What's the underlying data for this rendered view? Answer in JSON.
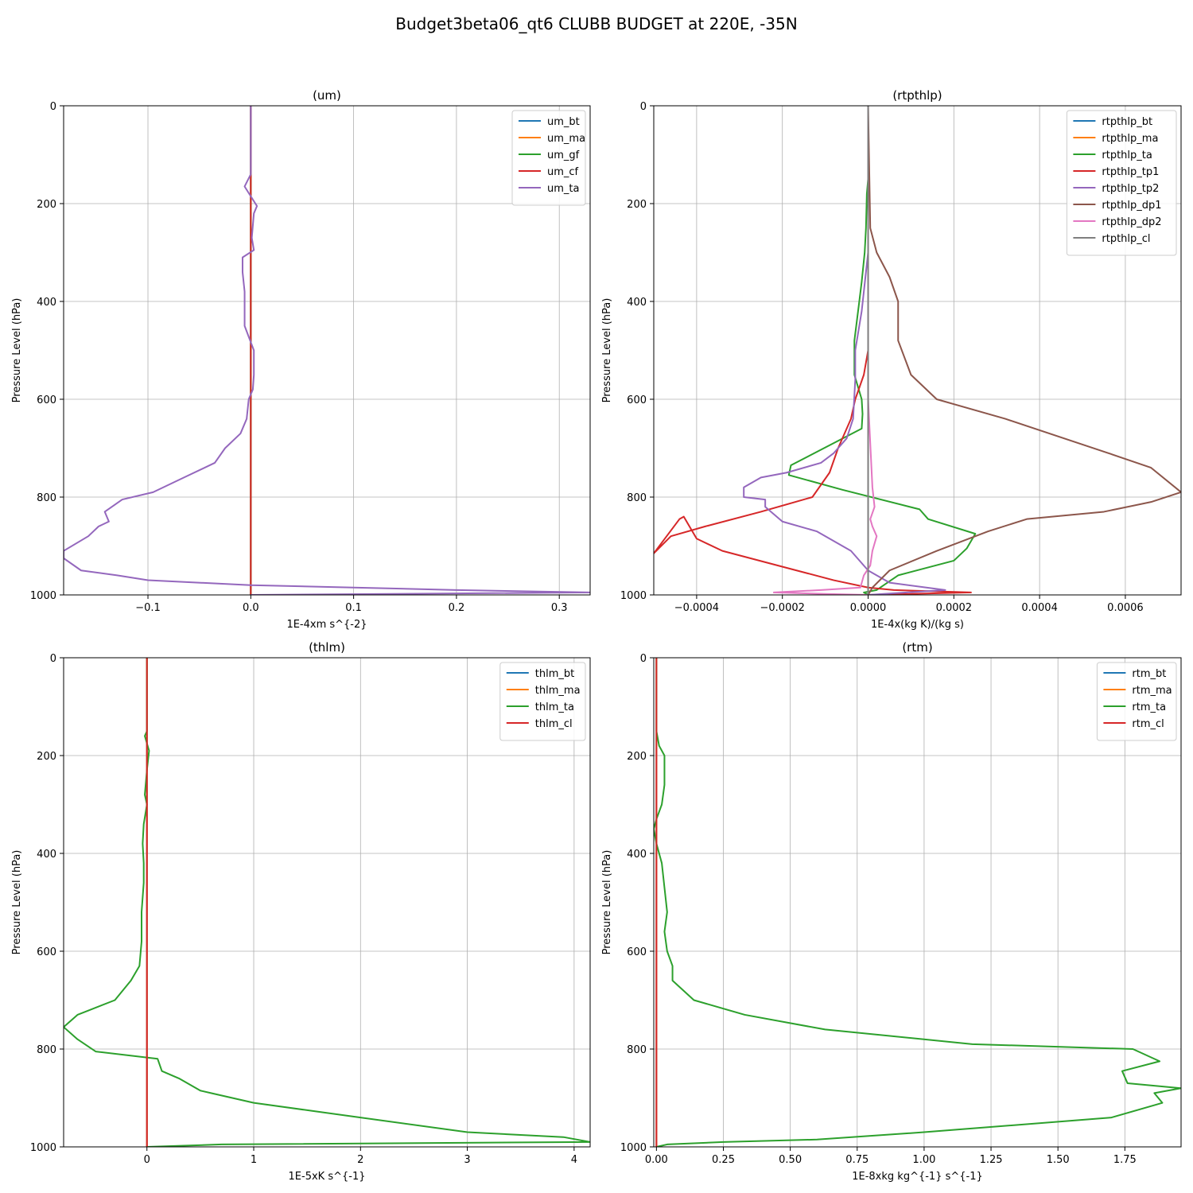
{
  "suptitle": "Budget3beta06_qt6 CLUBB BUDGET at 220E, -35N",
  "chart_data": [
    {
      "type": "line",
      "title": "(um)",
      "xlabel": "1E-4xm s^{-2}",
      "ylabel": "Pressure Level (hPa)",
      "xlim": [
        -0.182,
        0.33
      ],
      "ylim": [
        1000,
        0
      ],
      "xticks": [
        -0.1,
        0.0,
        0.1,
        0.2,
        0.3
      ],
      "xtick_labels": [
        "−0.1",
        "0.0",
        "0.1",
        "0.2",
        "0.3"
      ],
      "yticks": [
        0,
        200,
        400,
        600,
        800,
        1000
      ],
      "grid": true,
      "legend_position": "top-right",
      "series": [
        {
          "name": "um_bt",
          "color": "#1f77b4",
          "x": [
            0,
            0,
            0,
            0,
            0,
            0,
            0,
            0,
            0,
            0,
            0,
            0
          ],
          "y": [
            0,
            150,
            300,
            450,
            600,
            700,
            800,
            900,
            950,
            980,
            995,
            1000
          ]
        },
        {
          "name": "um_ma",
          "color": "#ff7f0e",
          "x": [
            0,
            0,
            0,
            0,
            0,
            0,
            0,
            0,
            0,
            0,
            0,
            0
          ],
          "y": [
            0,
            150,
            300,
            450,
            600,
            700,
            800,
            900,
            950,
            980,
            995,
            1000
          ]
        },
        {
          "name": "um_gf",
          "color": "#2ca02c",
          "x": [
            0,
            0,
            0,
            0,
            0,
            0,
            0,
            0,
            0,
            0,
            0,
            0
          ],
          "y": [
            0,
            150,
            300,
            450,
            600,
            700,
            800,
            900,
            950,
            980,
            995,
            1000
          ]
        },
        {
          "name": "um_cf",
          "color": "#d62728",
          "x": [
            0,
            0,
            0,
            0,
            0,
            0,
            0,
            0,
            0,
            0,
            0,
            0
          ],
          "y": [
            0,
            150,
            300,
            450,
            600,
            700,
            800,
            900,
            950,
            980,
            995,
            1000
          ]
        },
        {
          "name": "um_ta",
          "color": "#9467bd",
          "x": [
            0,
            0,
            0,
            -0.006,
            0.006,
            0.003,
            0.001,
            0.003,
            -0.008,
            -0.008,
            -0.006,
            -0.006,
            -0.006,
            0.003,
            0.003,
            0.002,
            -0.002,
            -0.004,
            -0.01,
            -0.025,
            -0.035,
            -0.065,
            -0.095,
            -0.125,
            -0.142,
            -0.138,
            -0.148,
            -0.158,
            -0.182,
            -0.182,
            -0.165,
            -0.13,
            -0.1,
            0.0,
            0.1,
            0.2,
            0.33,
            0.0
          ],
          "y": [
            0,
            100,
            140,
            165,
            205,
            220,
            270,
            295,
            310,
            340,
            380,
            420,
            450,
            500,
            550,
            580,
            600,
            640,
            670,
            700,
            730,
            760,
            790,
            805,
            830,
            850,
            860,
            880,
            910,
            925,
            950,
            960,
            970,
            980,
            985,
            990,
            995,
            1000
          ]
        }
      ]
    },
    {
      "type": "line",
      "title": "(rtpthlp)",
      "xlabel": "1E-4x(kg K)/(kg s)",
      "ylabel": "Pressure Level (hPa)",
      "xlim": [
        -0.0005,
        0.00073
      ],
      "ylim": [
        1000,
        0
      ],
      "xticks": [
        -0.0004,
        -0.0002,
        0.0,
        0.0002,
        0.0004,
        0.0006
      ],
      "xtick_labels": [
        "−0.0004",
        "−0.0002",
        "0.0000",
        "0.0002",
        "0.0004",
        "0.0006"
      ],
      "yticks": [
        0,
        200,
        400,
        600,
        800,
        1000
      ],
      "grid": true,
      "legend_position": "top-right",
      "series": [
        {
          "name": "rtpthlp_bt",
          "color": "#1f77b4",
          "x": [
            0,
            0,
            0,
            0,
            0,
            0,
            0,
            0,
            0,
            0
          ],
          "y": [
            0,
            200,
            400,
            600,
            700,
            800,
            900,
            950,
            985,
            1000
          ]
        },
        {
          "name": "rtpthlp_ma",
          "color": "#ff7f0e",
          "x": [
            0,
            0,
            0,
            0,
            0,
            0,
            0,
            0,
            0,
            0
          ],
          "y": [
            0,
            200,
            400,
            600,
            700,
            800,
            900,
            950,
            985,
            1000
          ]
        },
        {
          "name": "rtpthlp_ta",
          "color": "#2ca02c",
          "x": [
            0,
            0,
            -3e-06,
            -5e-06,
            -8e-06,
            -1.5e-05,
            -2.2e-05,
            -3.2e-05,
            -3.2e-05,
            -1.5e-05,
            -1.3e-05,
            -1.5e-05,
            -0.00018,
            -0.000185,
            -6e-05,
            0.00012,
            0.00014,
            0.00025,
            0.00023,
            0.0002,
            7e-05,
            2e-05,
            -1e-05,
            0.0
          ],
          "y": [
            0,
            150,
            180,
            250,
            300,
            360,
            410,
            480,
            550,
            600,
            630,
            660,
            735,
            755,
            785,
            825,
            845,
            875,
            905,
            930,
            960,
            990,
            995,
            1000
          ]
        },
        {
          "name": "rtpthlp_tp1",
          "color": "#d62728",
          "x": [
            0,
            0,
            0,
            0,
            -1e-05,
            -3e-05,
            -4e-05,
            -7e-05,
            -9e-05,
            -0.00013,
            -0.00025,
            -0.00038,
            -0.00046,
            -0.0005,
            -0.00044,
            -0.00043,
            -0.0004,
            -0.00034,
            -0.00021,
            -8e-05,
            0.0,
            6e-05,
            0.00024,
            0.0
          ],
          "y": [
            0,
            200,
            400,
            500,
            550,
            600,
            640,
            700,
            750,
            800,
            830,
            860,
            880,
            915,
            845,
            840,
            885,
            910,
            940,
            970,
            985,
            990,
            995,
            1000
          ]
        },
        {
          "name": "rtpthlp_tp2",
          "color": "#9467bd",
          "x": [
            0,
            0,
            -1.5e-05,
            -3e-05,
            -3e-05,
            -3.5e-05,
            -5e-05,
            -8e-05,
            -0.00011,
            -0.00019,
            -0.00025,
            -0.00029,
            -0.00029,
            -0.00024,
            -0.00024,
            -0.0002,
            -0.00012,
            -4e-05,
            0.0,
            5e-05,
            0.00018,
            0.0
          ],
          "y": [
            0,
            300,
            420,
            500,
            560,
            640,
            680,
            710,
            730,
            750,
            760,
            780,
            800,
            805,
            820,
            850,
            870,
            910,
            950,
            975,
            990,
            1000
          ]
        },
        {
          "name": "rtpthlp_dp1",
          "color": "#8c564b",
          "x": [
            0,
            5e-06,
            2e-05,
            5e-05,
            7e-05,
            7e-05,
            0.0001,
            0.00016,
            0.00032,
            0.00056,
            0.00066,
            0.00073,
            0.00066,
            0.00055,
            0.00037,
            0.00028,
            0.00016,
            5e-05,
            1e-05,
            0.0
          ],
          "y": [
            0,
            250,
            300,
            350,
            400,
            480,
            550,
            600,
            640,
            710,
            740,
            790,
            810,
            830,
            845,
            870,
            910,
            950,
            985,
            1000
          ]
        },
        {
          "name": "rtpthlp_dp2",
          "color": "#e377c2",
          "x": [
            0,
            0,
            1e-05,
            1.5e-05,
            5e-06,
            1e-05,
            2e-05,
            1e-05,
            5e-06,
            -1e-05,
            -1.8e-05,
            -0.00011,
            -0.00022,
            -0.0001,
            0.0
          ],
          "y": [
            0,
            600,
            780,
            820,
            845,
            860,
            880,
            910,
            940,
            960,
            985,
            990,
            995,
            998,
            1000
          ]
        },
        {
          "name": "rtpthlp_cl",
          "color": "#7f7f7f",
          "x": [
            0,
            0,
            0,
            0,
            0,
            0,
            0,
            0
          ],
          "y": [
            0,
            200,
            400,
            600,
            800,
            900,
            950,
            1000
          ]
        }
      ]
    },
    {
      "type": "line",
      "title": "(thlm)",
      "xlabel": "1E-5xK s^{-1}",
      "ylabel": "Pressure Level (hPa)",
      "xlim": [
        -0.78,
        4.15
      ],
      "ylim": [
        1000,
        0
      ],
      "xticks": [
        0,
        1,
        2,
        3,
        4
      ],
      "xtick_labels": [
        "0",
        "1",
        "2",
        "3",
        "4"
      ],
      "yticks": [
        0,
        200,
        400,
        600,
        800,
        1000
      ],
      "grid": true,
      "legend_position": "top-right",
      "series": [
        {
          "name": "thlm_bt",
          "color": "#1f77b4",
          "x": [
            0,
            0,
            0,
            0,
            0,
            0,
            0,
            0,
            0,
            0
          ],
          "y": [
            0,
            200,
            400,
            600,
            700,
            800,
            900,
            950,
            985,
            1000
          ]
        },
        {
          "name": "thlm_ma",
          "color": "#ff7f0e",
          "x": [
            0,
            0,
            0,
            0,
            0,
            0,
            0,
            0,
            0,
            0
          ],
          "y": [
            0,
            200,
            400,
            600,
            700,
            800,
            900,
            950,
            985,
            1000
          ]
        },
        {
          "name": "thlm_ta",
          "color": "#2ca02c",
          "x": [
            0,
            0,
            -0.02,
            0.02,
            0.0,
            -0.02,
            0.0,
            -0.03,
            -0.04,
            -0.03,
            -0.03,
            -0.05,
            -0.05,
            -0.07,
            -0.15,
            -0.3,
            -0.65,
            -0.78,
            -0.65,
            -0.48,
            0.1,
            0.14,
            0.3,
            0.5,
            0.6,
            1.0,
            2.0,
            3.0,
            3.9,
            4.15,
            0.7,
            0.0
          ],
          "y": [
            0,
            150,
            160,
            190,
            230,
            280,
            300,
            340,
            380,
            420,
            460,
            520,
            580,
            630,
            660,
            700,
            730,
            755,
            780,
            805,
            820,
            845,
            860,
            885,
            890,
            910,
            940,
            970,
            980,
            990,
            995,
            1000
          ]
        },
        {
          "name": "thlm_cl",
          "color": "#d62728",
          "x": [
            0,
            0,
            0,
            0,
            0,
            0,
            0,
            0,
            0,
            0
          ],
          "y": [
            0,
            200,
            400,
            600,
            700,
            800,
            900,
            950,
            985,
            1000
          ]
        }
      ]
    },
    {
      "type": "line",
      "title": "(rtm)",
      "xlabel": "1E-8xkg kg^{-1} s^{-1}",
      "ylabel": "Pressure Level (hPa)",
      "xlim": [
        -0.01,
        1.96
      ],
      "ylim": [
        1000,
        0
      ],
      "xticks": [
        0.0,
        0.25,
        0.5,
        0.75,
        1.0,
        1.25,
        1.5,
        1.75
      ],
      "xtick_labels": [
        "0.00",
        "0.25",
        "0.50",
        "0.75",
        "1.00",
        "1.25",
        "1.50",
        "1.75"
      ],
      "yticks": [
        0,
        200,
        400,
        600,
        800,
        1000
      ],
      "grid": true,
      "legend_position": "top-right",
      "series": [
        {
          "name": "rtm_bt",
          "color": "#1f77b4",
          "x": [
            0,
            0,
            0,
            0,
            0,
            0,
            0,
            0,
            0,
            0
          ],
          "y": [
            0,
            200,
            400,
            600,
            700,
            800,
            900,
            950,
            985,
            1000
          ]
        },
        {
          "name": "rtm_ma",
          "color": "#ff7f0e",
          "x": [
            0,
            0,
            0,
            0,
            0,
            0,
            0,
            0,
            0,
            0
          ],
          "y": [
            0,
            200,
            400,
            600,
            700,
            800,
            900,
            950,
            985,
            1000
          ]
        },
        {
          "name": "rtm_ta",
          "color": "#2ca02c",
          "x": [
            0,
            0,
            0.01,
            0.03,
            0.03,
            0.02,
            0.0,
            -0.01,
            0.0,
            0.02,
            0.03,
            0.04,
            0.03,
            0.04,
            0.06,
            0.06,
            0.14,
            0.33,
            0.63,
            1.18,
            1.78,
            1.88,
            1.74,
            1.76,
            1.96,
            1.86,
            1.89,
            1.7,
            1.0,
            0.6,
            0.25,
            0.04,
            0.0
          ],
          "y": [
            0,
            150,
            180,
            200,
            260,
            300,
            330,
            350,
            380,
            420,
            470,
            520,
            560,
            600,
            630,
            660,
            700,
            730,
            760,
            790,
            800,
            825,
            845,
            870,
            880,
            890,
            910,
            940,
            970,
            985,
            990,
            995,
            1000
          ]
        },
        {
          "name": "rtm_cl",
          "color": "#d62728",
          "x": [
            0,
            0,
            0,
            0,
            0,
            0,
            0,
            0,
            0,
            0
          ],
          "y": [
            0,
            200,
            400,
            600,
            700,
            800,
            900,
            950,
            985,
            1000
          ]
        }
      ]
    }
  ]
}
